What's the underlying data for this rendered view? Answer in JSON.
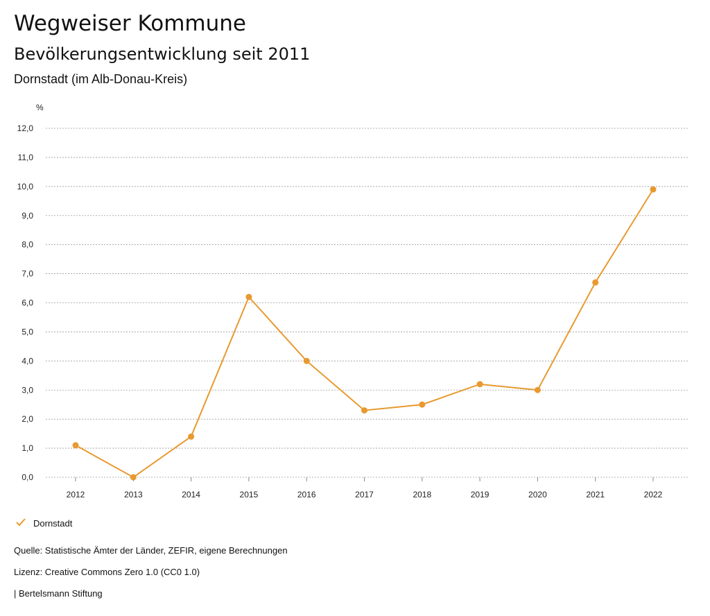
{
  "header": {
    "title": "Wegweiser Kommune",
    "subtitle": "Bevölkerungsentwicklung seit 2011",
    "region": "Dornstadt (im Alb-Donau-Kreis)"
  },
  "chart_data": {
    "type": "line",
    "unit_label": "%",
    "x": [
      "2012",
      "2013",
      "2014",
      "2015",
      "2016",
      "2017",
      "2018",
      "2019",
      "2020",
      "2021",
      "2022"
    ],
    "series": [
      {
        "name": "Dornstadt",
        "color": "#e8992f",
        "values": [
          1.1,
          0.0,
          1.4,
          6.2,
          4.0,
          2.3,
          2.5,
          3.2,
          3.0,
          6.7,
          9.9
        ]
      }
    ],
    "ylim": [
      0,
      12
    ],
    "yticks": [
      "0,0",
      "1,0",
      "2,0",
      "3,0",
      "4,0",
      "5,0",
      "6,0",
      "7,0",
      "8,0",
      "9,0",
      "10,0",
      "11,0",
      "12,0"
    ],
    "grid": true,
    "legend_position": "bottom-left"
  },
  "legend": {
    "icon": "checkmark-icon",
    "label": "Dornstadt"
  },
  "footer": {
    "source": "Quelle: Statistische Ämter der Länder, ZEFIR, eigene Berechnungen",
    "license": "Lizenz: Creative Commons Zero 1.0 (CC0 1.0)",
    "publisher": "| Bertelsmann Stiftung"
  }
}
